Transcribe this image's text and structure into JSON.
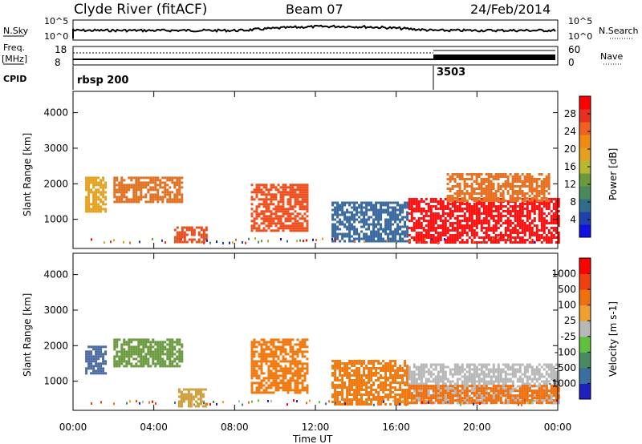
{
  "header": {
    "title": "Clyde River (fitACF)",
    "beam": "Beam 07",
    "date": "24/Feb/2014"
  },
  "panels": {
    "nsky_label": "N.Sky",
    "nsky_ticks": [
      "10^5",
      "10^0"
    ],
    "nsearch_label": "N.Search",
    "nsearch_ticks": [
      "10^5",
      "10^0"
    ],
    "freq_label": "Freq.",
    "freq_unit": "[MHz]",
    "freq_ticks": [
      "18",
      "8"
    ],
    "nave_label": "Nave",
    "nave_ticks": [
      "60",
      "0"
    ],
    "cpid_label": "CPID",
    "cpid_start": "rbsp 200",
    "cpid_switch": "3503"
  },
  "chart_data": [
    {
      "type": "heatmap",
      "name": "power",
      "ylabel": "Slant Range [km]",
      "ylim": [
        180,
        4600
      ],
      "yticks": [
        "4000",
        "3000",
        "2000",
        "1000"
      ],
      "xlabel": "Time UT",
      "xticks": [
        "00:00",
        "04:00",
        "08:00",
        "12:00",
        "16:00",
        "20:00",
        "00:00"
      ],
      "colorbar": {
        "label": "Power [dB]",
        "ticks": [
          "28",
          "24",
          "20",
          "16",
          "12",
          "8",
          "4"
        ],
        "colors": [
          "#1010e0",
          "#2040b0",
          "#2e6e8a",
          "#4a8a5a",
          "#6a9a3a",
          "#b8b830",
          "#e6a020",
          "#f08a10",
          "#f06020",
          "#e83020",
          "#ff0000"
        ]
      },
      "regions": [
        {
          "t0": 0.6,
          "t1": 1.6,
          "r0": 1250,
          "r1": 2200,
          "color": "#e6a020"
        },
        {
          "t0": 2.0,
          "t1": 5.4,
          "r0": 1500,
          "r1": 2200,
          "color": "#e07020"
        },
        {
          "t0": 5.0,
          "t1": 6.6,
          "r0": 350,
          "r1": 800,
          "color": "#e65020"
        },
        {
          "t0": 8.8,
          "t1": 11.6,
          "r0": 700,
          "r1": 2000,
          "color": "#ee5020"
        },
        {
          "t0": 12.8,
          "t1": 16.6,
          "r0": 350,
          "r1": 1500,
          "color": "#3a6aa0"
        },
        {
          "t0": 16.6,
          "t1": 24.0,
          "r0": 350,
          "r1": 1600,
          "color": "#ff1010"
        },
        {
          "t0": 18.5,
          "t1": 23.6,
          "r0": 1500,
          "r1": 2300,
          "color": "#e87020"
        }
      ]
    },
    {
      "type": "heatmap",
      "name": "velocity",
      "ylabel": "Slant Range [km]",
      "ylim": [
        180,
        4600
      ],
      "yticks": [
        "4000",
        "3000",
        "2000",
        "1000"
      ],
      "xlabel": "Time UT",
      "xticks": [
        "00:00",
        "04:00",
        "08:00",
        "12:00",
        "16:00",
        "20:00",
        "00:00"
      ],
      "colorbar": {
        "label": "Velocity [m s-1]",
        "ticks": [
          "1000",
          "500",
          "100",
          "25",
          "-25",
          "-100",
          "-500",
          "-1000"
        ],
        "colors": [
          "#2020c0",
          "#3a70a0",
          "#4a8a60",
          "#60c040",
          "#b8b8b8",
          "#f0a030",
          "#f07010",
          "#f04010",
          "#ff0000"
        ]
      },
      "regions": [
        {
          "t0": 0.6,
          "t1": 1.6,
          "r0": 1200,
          "r1": 2000,
          "color": "#4a6aa0"
        },
        {
          "t0": 2.0,
          "t1": 5.4,
          "r0": 1400,
          "r1": 2200,
          "color": "#6a9a40"
        },
        {
          "t0": 5.2,
          "t1": 6.6,
          "r0": 300,
          "r1": 800,
          "color": "#d0a040"
        },
        {
          "t0": 8.8,
          "t1": 11.6,
          "r0": 700,
          "r1": 2200,
          "color": "#f07a10"
        },
        {
          "t0": 12.8,
          "t1": 16.6,
          "r0": 350,
          "r1": 1600,
          "color": "#f07a10"
        },
        {
          "t0": 16.6,
          "t1": 24.0,
          "r0": 400,
          "r1": 1500,
          "color": "#b8b8b8"
        },
        {
          "t0": 16.6,
          "t1": 24.0,
          "r0": 400,
          "r1": 900,
          "color": "#f07010"
        }
      ]
    }
  ]
}
